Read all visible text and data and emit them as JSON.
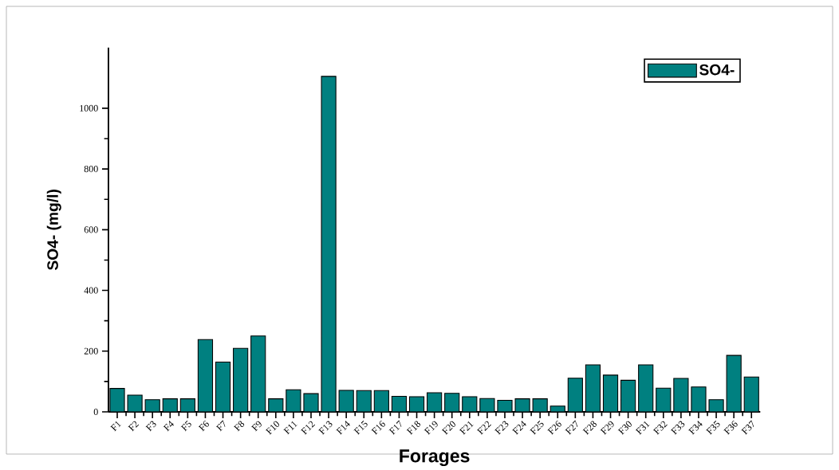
{
  "chart_data": {
    "type": "bar",
    "xlabel": "Forages",
    "ylabel": "SO4- (mg/l)",
    "categories": [
      "F1",
      "F2",
      "F3",
      "F4",
      "F5",
      "F6",
      "F7",
      "F8",
      "F9",
      "F10",
      "F11",
      "F12",
      "F13",
      "F14",
      "F15",
      "F16",
      "F17",
      "F18",
      "F19",
      "F20",
      "F21",
      "F22",
      "F23",
      "F24",
      "F25",
      "F26",
      "F27",
      "F28",
      "F29",
      "F30",
      "F31",
      "F32",
      "F33",
      "F34",
      "F35",
      "F36",
      "F37"
    ],
    "series": [
      {
        "name": "SO4-",
        "color": "#008080",
        "values": [
          77,
          55,
          40,
          43,
          43,
          238,
          164,
          209,
          250,
          43,
          73,
          60,
          1105,
          71,
          70,
          70,
          51,
          50,
          63,
          61,
          50,
          44,
          38,
          43,
          43,
          19,
          111,
          155,
          121,
          104,
          155,
          78,
          110,
          82,
          40,
          186,
          115
        ]
      }
    ],
    "ylim": [
      0,
      1200
    ],
    "yticks": [
      0,
      200,
      400,
      600,
      800,
      1000
    ],
    "legend": "top right"
  }
}
